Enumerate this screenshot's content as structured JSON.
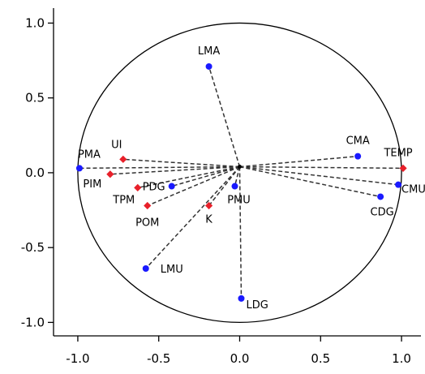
{
  "chart_data": {
    "type": "scatter",
    "title": "",
    "xlabel": "",
    "ylabel": "",
    "xlim": [
      -1.15,
      1.12
    ],
    "ylim": [
      -1.09,
      1.1
    ],
    "xticks": [
      -1.0,
      -0.5,
      0.0,
      0.5,
      1.0
    ],
    "xtick_labels": [
      "-1.0",
      "-0.5",
      "0.0",
      "0.5",
      "1.0"
    ],
    "yticks": [
      -1.0,
      -0.5,
      0.0,
      0.5,
      1.0
    ],
    "ytick_labels": [
      "-1.0",
      "-0.5",
      "0.0",
      "0.5",
      "1.0"
    ],
    "grid": false,
    "origin": [
      0.0,
      0.04
    ],
    "circle": {
      "cx": 0.0,
      "cy": 0.0,
      "r": 1.0
    },
    "series": [
      {
        "marker": "circle",
        "color": "#1a1aff",
        "points": [
          {
            "label": "LMA",
            "x": -0.19,
            "y": 0.71
          },
          {
            "label": "PMA",
            "x": -0.99,
            "y": 0.03
          },
          {
            "label": "PDG",
            "x": -0.42,
            "y": -0.09
          },
          {
            "label": "PMU",
            "x": -0.03,
            "y": -0.09
          },
          {
            "label": "LMU",
            "x": -0.58,
            "y": -0.64
          },
          {
            "label": "LDG",
            "x": 0.01,
            "y": -0.84
          },
          {
            "label": "CMA",
            "x": 0.73,
            "y": 0.11
          },
          {
            "label": "CMU",
            "x": 0.98,
            "y": -0.08
          },
          {
            "label": "CDG",
            "x": 0.87,
            "y": -0.16
          }
        ]
      },
      {
        "marker": "diamond",
        "color": "#e8202a",
        "points": [
          {
            "label": "UI",
            "x": -0.72,
            "y": 0.09
          },
          {
            "label": "PIM",
            "x": -0.8,
            "y": -0.01
          },
          {
            "label": "TPM",
            "x": -0.63,
            "y": -0.1
          },
          {
            "label": "POM",
            "x": -0.57,
            "y": -0.22
          },
          {
            "label": "K",
            "x": -0.19,
            "y": -0.22
          },
          {
            "label": "TEMP",
            "x": 1.01,
            "y": 0.03
          }
        ]
      }
    ]
  }
}
